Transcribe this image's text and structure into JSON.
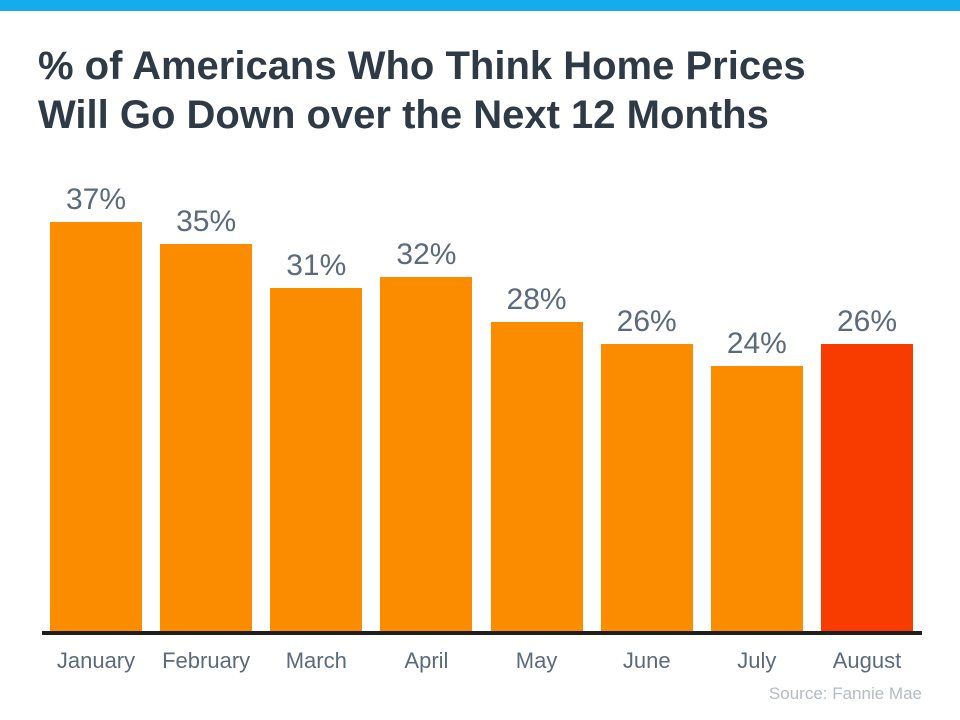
{
  "title": "% of Americans Who Think Home Prices\nWill Go Down over the Next 12 Months",
  "source": "Source: Fannie Mae",
  "colors": {
    "top_accent": "#15ABEC",
    "title_text": "#2E3B47",
    "bar_orange": "#FB8C00",
    "bar_highlight_red": "#F83C00",
    "value_label_text": "#5B6B7B",
    "month_label_text": "#5B6B7B",
    "axis_line": "#1F1F1F",
    "source_text": "#B4BBC2",
    "background": "#FFFFFF"
  },
  "chart_data": {
    "type": "bar",
    "title": "% of Americans Who Think Home Prices Will Go Down over the Next 12 Months",
    "categories": [
      "January",
      "February",
      "March",
      "April",
      "May",
      "June",
      "July",
      "August"
    ],
    "values": [
      37,
      35,
      31,
      32,
      28,
      26,
      24,
      26
    ],
    "value_labels": [
      "37%",
      "35%",
      "31%",
      "32%",
      "28%",
      "26%",
      "24%",
      "26%"
    ],
    "highlight_index": 7,
    "xlabel": "",
    "ylabel": "",
    "ylim": [
      0,
      40
    ],
    "grid": false,
    "legend": false,
    "annotation": "Source: Fannie Mae"
  }
}
